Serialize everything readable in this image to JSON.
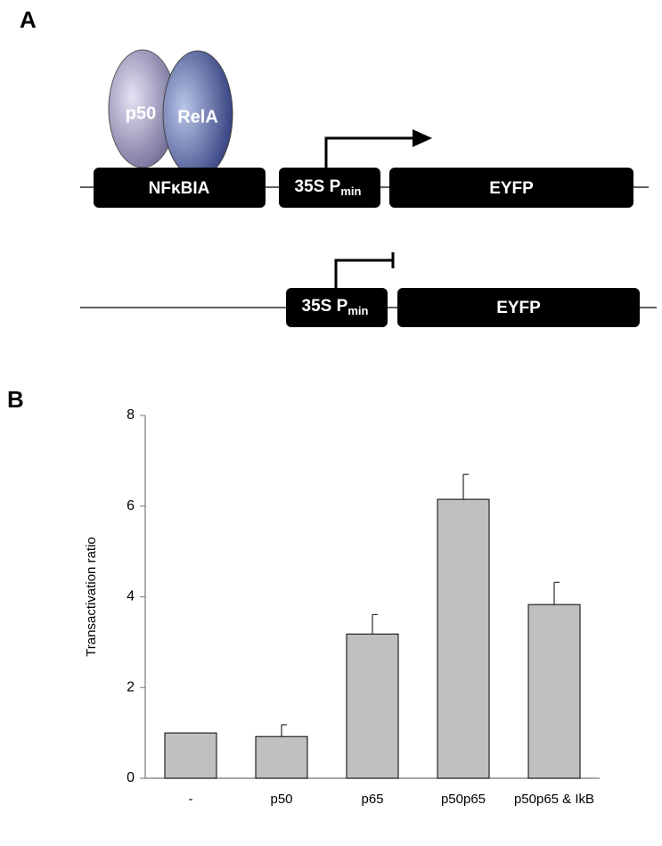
{
  "panel_labels": [
    "A",
    "B"
  ],
  "diagram": {
    "construct_1": {
      "proteins": [
        "p50",
        "RelA"
      ],
      "elements": [
        "NFκBIA",
        {
          "main": "35S P",
          "sub": "min"
        },
        "EYFP"
      ]
    },
    "construct_2": {
      "elements": [
        {
          "main": "35S P",
          "sub": "min"
        },
        "EYFP"
      ]
    }
  },
  "chart_data": {
    "type": "bar",
    "y_label": "Transactivation ratio",
    "categories": [
      "-",
      "p50",
      "p65",
      "p50p65",
      "p50p65 & IkB"
    ],
    "values": [
      1.0,
      0.92,
      3.18,
      6.15,
      3.83
    ],
    "errors": [
      null,
      0.26,
      0.43,
      0.55,
      0.49
    ],
    "color": "#c0c0c0",
    "ylim": [
      0,
      8
    ],
    "yticks": [
      0,
      2,
      4,
      6,
      8
    ]
  }
}
